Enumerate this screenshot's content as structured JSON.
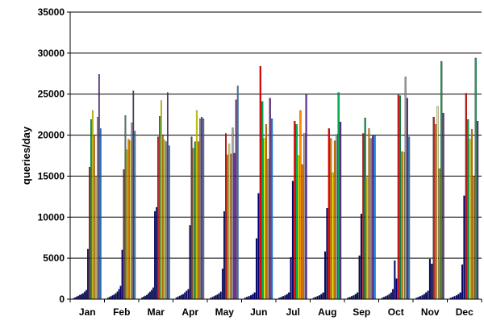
{
  "chart_data": {
    "type": "bar",
    "title": "",
    "xlabel": "",
    "ylabel": "queries/day",
    "ylim": [
      0,
      35000
    ],
    "yticks": [
      0,
      5000,
      10000,
      15000,
      20000,
      25000,
      30000,
      35000
    ],
    "grid": "horizontal",
    "legend": "none",
    "categories": [
      "Jan",
      "Feb",
      "Mar",
      "Apr",
      "May",
      "Jun",
      "Jul",
      "Aug",
      "Sep",
      "Oct",
      "Nov",
      "Dec"
    ],
    "series_colors": [
      "#000080",
      "#000080",
      "#000080",
      "#000080",
      "#000080",
      "#000080",
      "#000080",
      "#000080",
      "#000080",
      "#000080",
      "#000080",
      "#000080",
      "#FF0000",
      "#00B050",
      "#FFFF00",
      "#FF8C00",
      "#A0A0A0",
      "#7030A0",
      "#1E90FF"
    ],
    "values": [
      [
        100,
        200,
        300,
        400,
        500,
        600,
        700,
        900,
        1100,
        6100,
        16100,
        21900,
        23000,
        19900,
        15000,
        22200,
        27400,
        20800,
        0
      ],
      [
        150,
        250,
        350,
        450,
        550,
        700,
        900,
        1200,
        1600,
        6000,
        15800,
        22400,
        18200,
        19500,
        19300,
        21500,
        25400,
        20500,
        0
      ],
      [
        200,
        300,
        400,
        500,
        700,
        900,
        1100,
        1400,
        10700,
        11200,
        19800,
        22300,
        24200,
        19900,
        19400,
        19200,
        25200,
        18700,
        0
      ],
      [
        200,
        300,
        400,
        500,
        600,
        800,
        1000,
        1200,
        9000,
        19800,
        18400,
        19200,
        23000,
        19200,
        22000,
        22200,
        22000,
        0,
        0
      ],
      [
        150,
        250,
        350,
        450,
        550,
        700,
        900,
        3700,
        10700,
        20200,
        17600,
        18900,
        17700,
        20900,
        17800,
        24300,
        26000,
        0,
        0
      ],
      [
        150,
        250,
        350,
        450,
        600,
        800,
        7400,
        12900,
        28400,
        24100,
        19600,
        21300,
        17100,
        24500,
        22000,
        0,
        0,
        0,
        0
      ],
      [
        150,
        250,
        350,
        450,
        600,
        800,
        5100,
        14400,
        21700,
        21300,
        17500,
        23000,
        16400,
        20200,
        25000,
        0,
        0,
        0,
        0
      ],
      [
        150,
        250,
        350,
        450,
        600,
        800,
        5800,
        11100,
        20800,
        19600,
        15400,
        19300,
        20100,
        25200,
        21600,
        0,
        0,
        0,
        0
      ],
      [
        150,
        250,
        350,
        450,
        600,
        800,
        5300,
        10400,
        20200,
        22100,
        14800,
        20800,
        19600,
        19900,
        20000,
        0,
        0,
        0,
        0
      ],
      [
        150,
        250,
        350,
        450,
        600,
        800,
        1200,
        4700,
        2500,
        24900,
        24800,
        18000,
        17900,
        27100,
        24500,
        19800,
        0,
        0,
        0
      ],
      [
        150,
        250,
        350,
        450,
        600,
        800,
        1000,
        4900,
        4300,
        22200,
        21300,
        23500,
        15900,
        29000,
        22700,
        0,
        0,
        0,
        0
      ],
      [
        150,
        250,
        350,
        450,
        600,
        800,
        4200,
        12600,
        25100,
        21900,
        19500,
        20700,
        15000,
        29400,
        21700,
        0,
        0,
        0,
        0
      ]
    ],
    "bar_colors_per_category": [
      [
        "#000080",
        "#000080",
        "#000080",
        "#000080",
        "#000080",
        "#000080",
        "#000080",
        "#000080",
        "#000080",
        "#000080",
        "#FF0000",
        "#00B050",
        "#FFFF00",
        "#FF8C00",
        "#FFFF66",
        "#A0A0A0",
        "#7030A0",
        "#1E90FF"
      ],
      [
        "#000080",
        "#000080",
        "#000080",
        "#000080",
        "#000080",
        "#000080",
        "#000080",
        "#000080",
        "#000080",
        "#000080",
        "#FF0000",
        "#00B050",
        "#FFFF00",
        "#FF8C00",
        "#FFFF66",
        "#A0A0A0",
        "#7030A0",
        "#1E90FF"
      ],
      [
        "#000080",
        "#000080",
        "#000080",
        "#000080",
        "#000080",
        "#000080",
        "#000080",
        "#000080",
        "#000080",
        "#000080",
        "#FF0000",
        "#00B050",
        "#FFFF00",
        "#FF8C00",
        "#FFFF66",
        "#A0A0A0",
        "#7030A0",
        "#1E90FF"
      ],
      [
        "#000080",
        "#000080",
        "#000080",
        "#000080",
        "#000080",
        "#000080",
        "#000080",
        "#000080",
        "#000080",
        "#FF0000",
        "#FF8C00",
        "#00B050",
        "#FFFF00",
        "#FF8C00",
        "#A0A0A0",
        "#7030A0",
        "#1E90FF"
      ],
      [
        "#000080",
        "#000080",
        "#000080",
        "#000080",
        "#000080",
        "#000080",
        "#000080",
        "#000080",
        "#000080",
        "#FF0000",
        "#FF8C00",
        "#FFFF00",
        "#FF8C00",
        "#A0A0A0",
        "#7030A0",
        "#7030A0",
        "#1E90FF"
      ],
      [
        "#000080",
        "#000080",
        "#000080",
        "#000080",
        "#000080",
        "#000080",
        "#000080",
        "#000080",
        "#FF0000",
        "#00B050",
        "#FFFF00",
        "#FF8C00",
        "#A0A0A0",
        "#7030A0",
        "#1E90FF"
      ],
      [
        "#000080",
        "#000080",
        "#000080",
        "#000080",
        "#000080",
        "#000080",
        "#000080",
        "#000080",
        "#FF0000",
        "#00B050",
        "#FFFF00",
        "#FF8C00",
        "#FF8C00",
        "#A0A0A0",
        "#7030A0"
      ],
      [
        "#000080",
        "#000080",
        "#000080",
        "#000080",
        "#000080",
        "#000080",
        "#000080",
        "#000080",
        "#FF0000",
        "#FF8C00",
        "#FFFF00",
        "#FF8C00",
        "#A0A0A0",
        "#00B050",
        "#7030A0"
      ],
      [
        "#000080",
        "#000080",
        "#000080",
        "#000080",
        "#000080",
        "#000080",
        "#000080",
        "#000080",
        "#FF0000",
        "#00B050",
        "#FFFF00",
        "#FF8C00",
        "#A0A0A0",
        "#7030A0",
        "#1E90FF"
      ],
      [
        "#000080",
        "#000080",
        "#000080",
        "#000080",
        "#000080",
        "#000080",
        "#000080",
        "#000080",
        "#000080",
        "#FF0000",
        "#00B050",
        "#FF8C00",
        "#FFFF00",
        "#A0A0A0",
        "#7030A0",
        "#1E90FF"
      ],
      [
        "#000080",
        "#000080",
        "#000080",
        "#000080",
        "#000080",
        "#000080",
        "#000080",
        "#000080",
        "#000080",
        "#FF0000",
        "#FF8C00",
        "#FFFF00",
        "#FF8C00",
        "#00B050",
        "#7030A0"
      ],
      [
        "#000080",
        "#000080",
        "#000080",
        "#000080",
        "#000080",
        "#000080",
        "#000080",
        "#000080",
        "#FF0000",
        "#00B050",
        "#FFFF00",
        "#FF8C00",
        "#FF8C00",
        "#00B050",
        "#7030A0"
      ]
    ]
  }
}
